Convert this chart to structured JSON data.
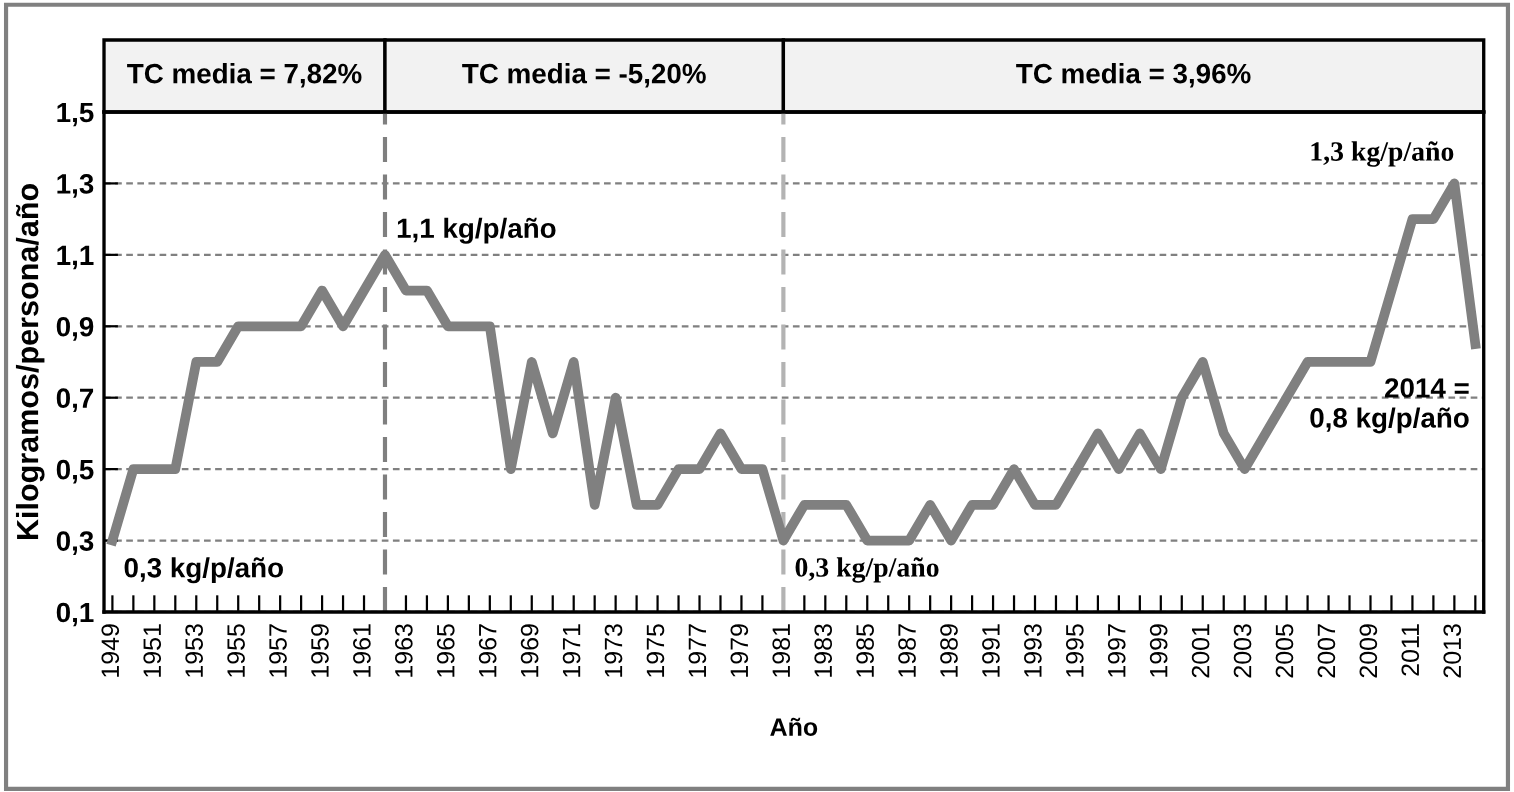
{
  "chart_data": {
    "type": "line",
    "xlabel": "Año",
    "ylabel": "Kilogramos/persona/año",
    "x": [
      1949,
      1950,
      1951,
      1952,
      1953,
      1954,
      1955,
      1956,
      1957,
      1958,
      1959,
      1960,
      1961,
      1962,
      1963,
      1964,
      1965,
      1966,
      1967,
      1968,
      1969,
      1970,
      1971,
      1972,
      1973,
      1974,
      1975,
      1976,
      1977,
      1978,
      1979,
      1980,
      1981,
      1982,
      1983,
      1984,
      1985,
      1986,
      1987,
      1988,
      1989,
      1990,
      1991,
      1992,
      1993,
      1994,
      1995,
      1996,
      1997,
      1998,
      1999,
      2000,
      2001,
      2002,
      2003,
      2004,
      2005,
      2006,
      2007,
      2008,
      2009,
      2010,
      2011,
      2012,
      2013,
      2014
    ],
    "series": [
      {
        "color": "#808080",
        "values": [
          0.3,
          0.5,
          0.5,
          0.5,
          0.8,
          0.8,
          0.9,
          0.9,
          0.9,
          0.9,
          1.0,
          0.9,
          1.0,
          1.1,
          1.0,
          1.0,
          0.9,
          0.9,
          0.9,
          0.5,
          0.8,
          0.6,
          0.8,
          0.4,
          0.7,
          0.4,
          0.4,
          0.5,
          0.5,
          0.6,
          0.5,
          0.5,
          0.3,
          0.4,
          0.4,
          0.4,
          0.3,
          0.3,
          0.3,
          0.4,
          0.3,
          0.4,
          0.4,
          0.5,
          0.4,
          0.4,
          0.5,
          0.6,
          0.5,
          0.6,
          0.5,
          0.7,
          0.8,
          0.6,
          0.5,
          0.6,
          0.7,
          0.8,
          0.8,
          0.8,
          0.8,
          1.0,
          1.2,
          1.2,
          1.3,
          0.85
        ]
      }
    ],
    "xlim": [
      1948.6,
      2014.4
    ],
    "xticks": [
      1949,
      {
        "value": 1950,
        "label": null
      },
      1951,
      {
        "value": 1952,
        "label": null
      },
      1953,
      {
        "value": 1954,
        "label": null
      },
      1955,
      {
        "value": 1956,
        "label": null
      },
      1957,
      {
        "value": 1958,
        "label": null
      },
      1959,
      {
        "value": 1960,
        "label": null
      },
      1961,
      {
        "value": 1962,
        "label": null
      },
      1963,
      {
        "value": 1964,
        "label": null
      },
      1965,
      {
        "value": 1966,
        "label": null
      },
      1967,
      {
        "value": 1968,
        "label": null
      },
      1969,
      {
        "value": 1970,
        "label": null
      },
      1971,
      {
        "value": 1972,
        "label": null
      },
      1973,
      {
        "value": 1974,
        "label": null
      },
      1975,
      {
        "value": 1976,
        "label": null
      },
      1977,
      {
        "value": 1978,
        "label": null
      },
      1979,
      {
        "value": 1980,
        "label": null
      },
      1981,
      {
        "value": 1982,
        "label": null
      },
      1983,
      {
        "value": 1984,
        "label": null
      },
      1985,
      {
        "value": 1986,
        "label": null
      },
      1987,
      {
        "value": 1988,
        "label": null
      },
      1989,
      {
        "value": 1990,
        "label": null
      },
      1991,
      {
        "value": 1992,
        "label": null
      },
      1993,
      {
        "value": 1994,
        "label": null
      },
      1995,
      {
        "value": 1996,
        "label": null
      },
      1997,
      {
        "value": 1998,
        "label": null
      },
      1999,
      {
        "value": 2000,
        "label": null
      },
      2001,
      {
        "value": 2002,
        "label": null
      },
      2003,
      {
        "value": 2004,
        "label": null
      },
      2005,
      {
        "value": 2006,
        "label": null
      },
      2007,
      {
        "value": 2008,
        "label": null
      },
      2009,
      {
        "value": 2010,
        "label": null
      },
      2011,
      {
        "value": 2012,
        "label": null
      },
      2013,
      {
        "value": 2014,
        "label": null
      }
    ],
    "ylim": [
      0.1,
      1.5
    ],
    "yticks": [
      {
        "value": 0.1,
        "label": "0,1"
      },
      {
        "value": 0.3,
        "label": "0,3"
      },
      {
        "value": 0.5,
        "label": "0,5"
      },
      {
        "value": 0.7,
        "label": "0,7"
      },
      {
        "value": 0.9,
        "label": "0,9"
      },
      {
        "value": 1.1,
        "label": "1,1"
      },
      {
        "value": 1.3,
        "label": "1,3"
      },
      {
        "value": 1.5,
        "label": "1,5"
      }
    ],
    "grid": "y",
    "marker": "none",
    "line_style": "solid",
    "ref_lines": [
      {
        "axis": "x",
        "value": 1962,
        "color": "#7f7f7f",
        "line_style": "dashed"
      },
      {
        "axis": "x",
        "value": 1981,
        "color": "#b3b3b3",
        "line_style": "dashed"
      }
    ],
    "annotations": [
      "TC media = 7,82%",
      "TC media = -5,20%",
      "TC media = 3,96%",
      {
        "text": "0,3 kg/p/año",
        "x": 1949,
        "y": 0.3
      },
      {
        "text": "1,1 kg/p/año",
        "x": 1962,
        "y": 1.1
      },
      {
        "text": "0,3 kg/p/año",
        "x": 1981,
        "y": 0.3
      },
      {
        "text": "1,3 kg/p/año",
        "x": 2013,
        "y": 1.3
      },
      {
        "text": "2014 =\n0,8 kg/p/año",
        "x": 2014,
        "y": 0.85
      }
    ]
  }
}
